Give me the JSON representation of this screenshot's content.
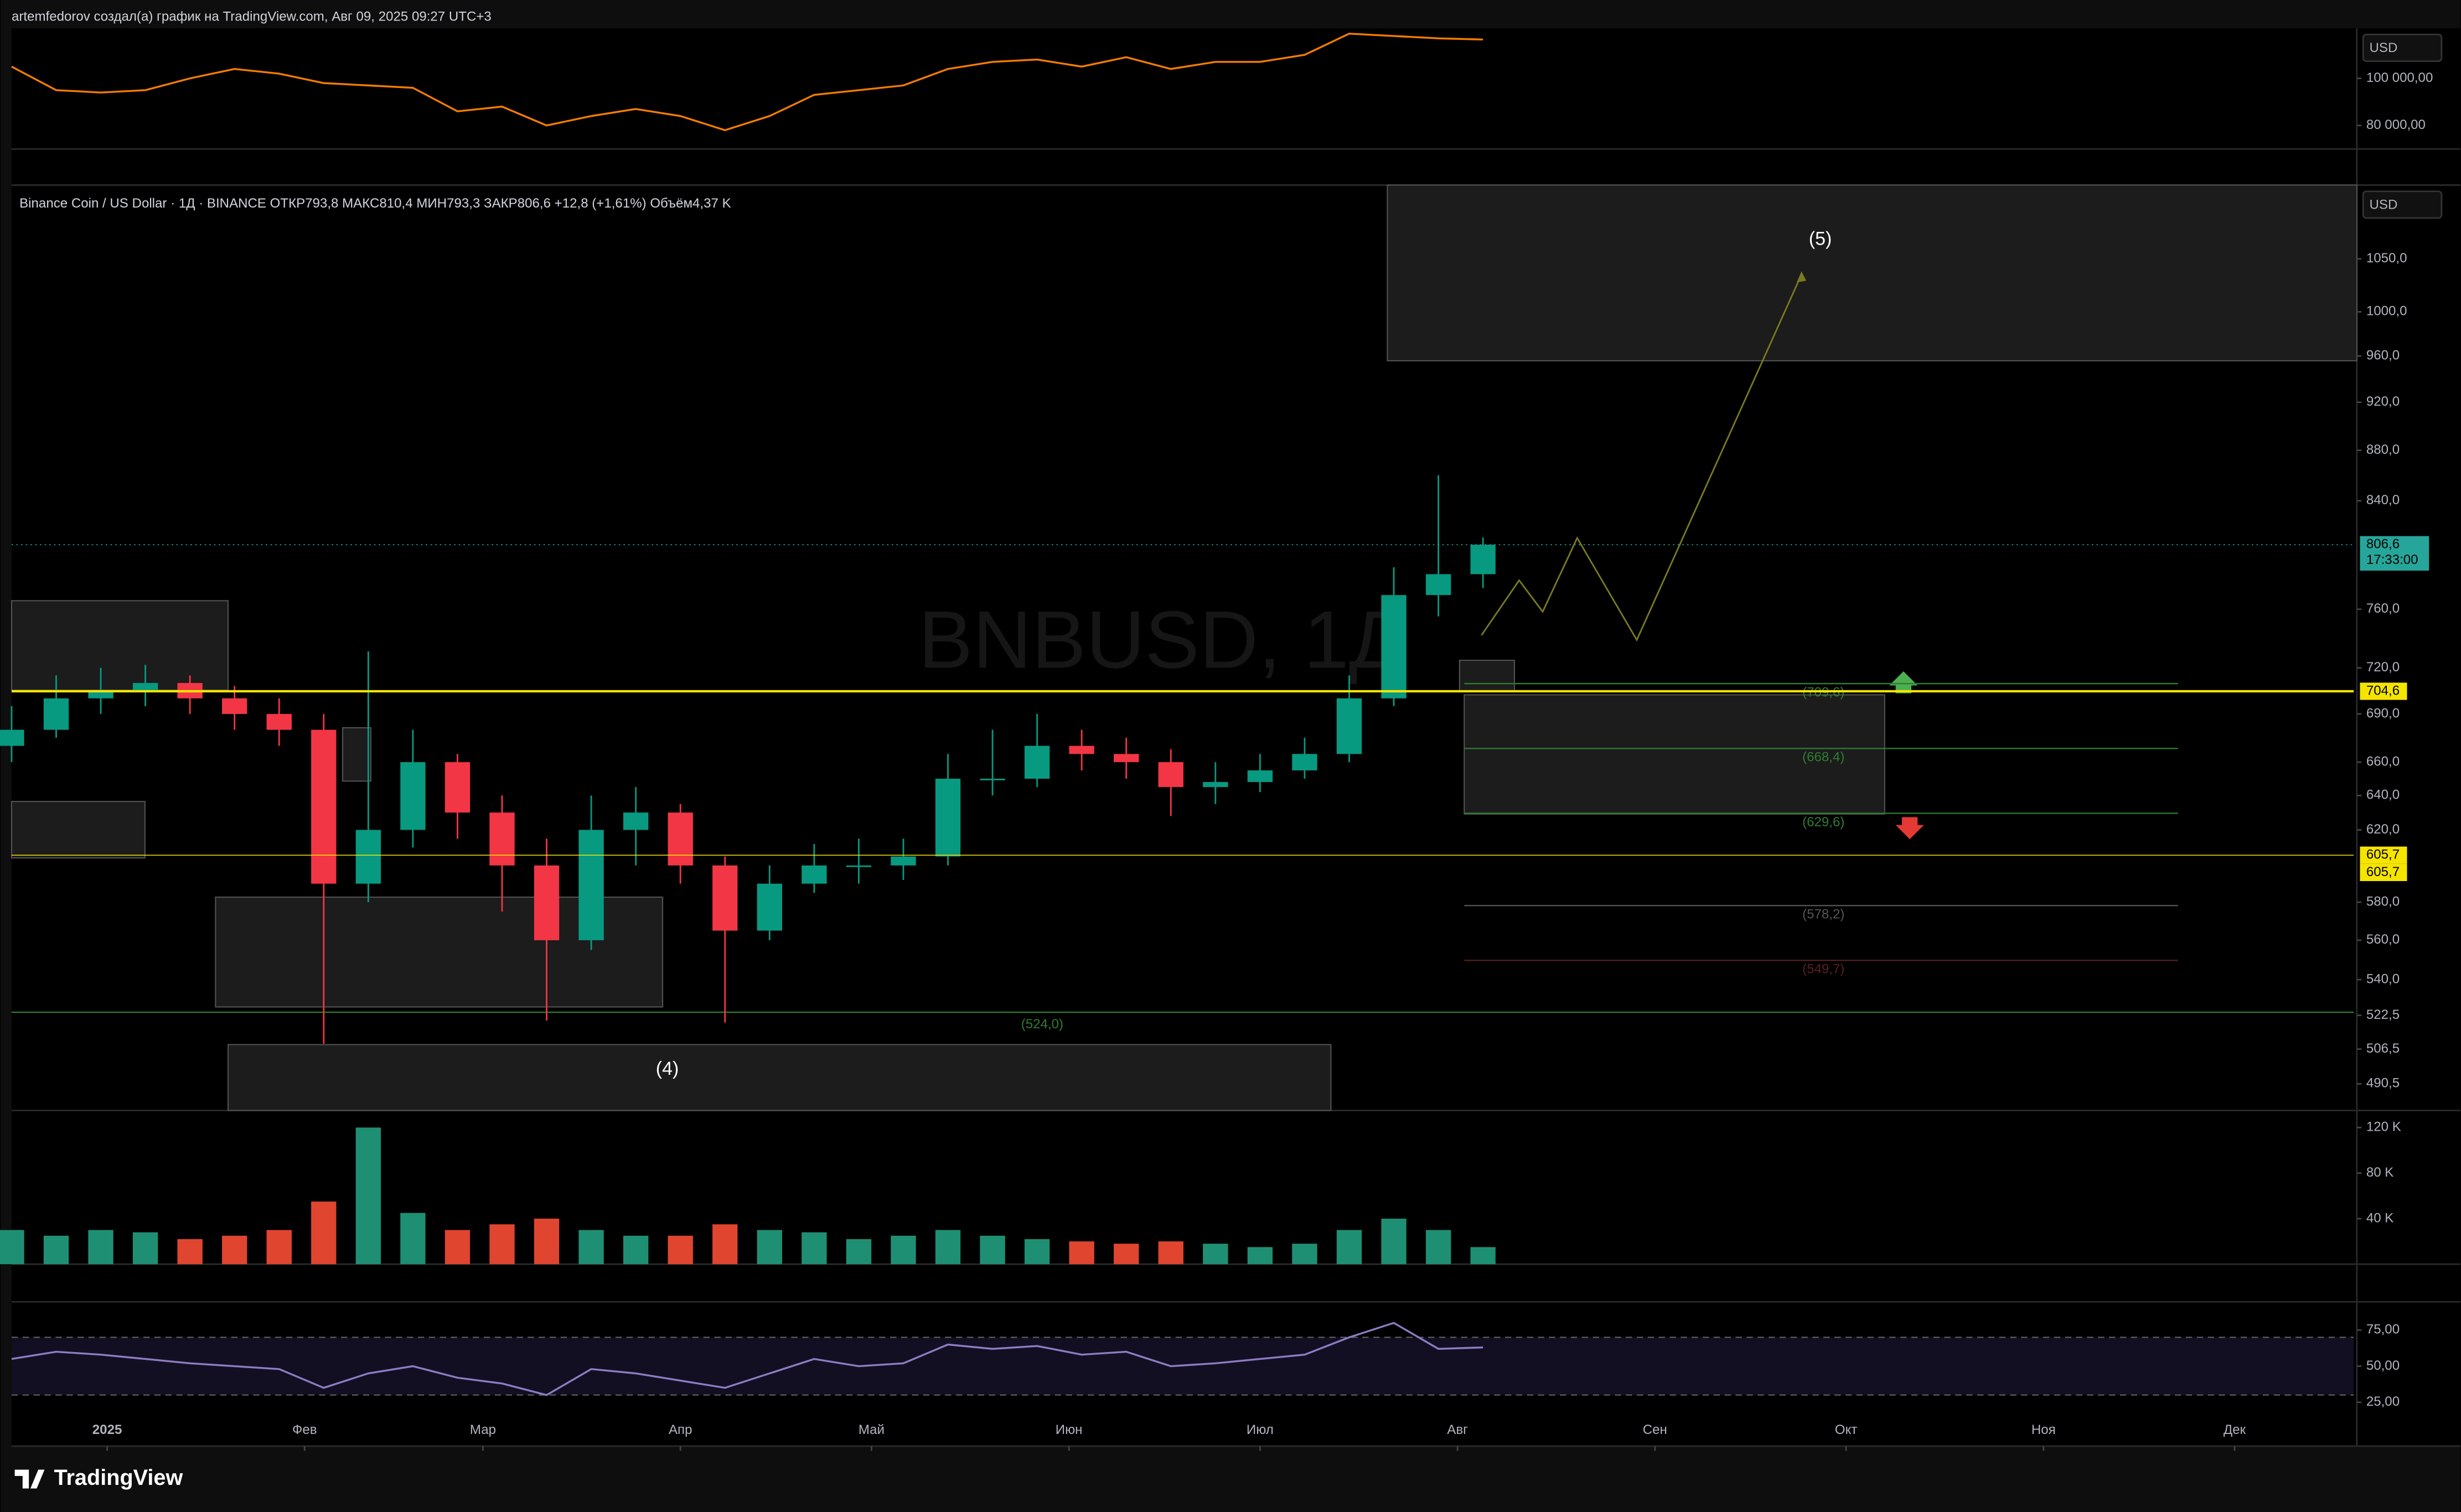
{
  "header": {
    "text": "artemfedorov создал(а) график на TradingView.com, Авг 09, 2025 09:27 UTC+3"
  },
  "footer": {
    "logo": "TradingView"
  },
  "chart_data": [
    {
      "type": "line",
      "color": "#f57c00",
      "currency": "USD",
      "xlim": [
        -15,
        352.7
      ],
      "ylim": [
        70000,
        121300
      ],
      "yticks": [
        {
          "value": 80000,
          "label": "80 000,00"
        },
        {
          "value": 100000,
          "label": "100 000,00"
        }
      ],
      "x": [
        -15,
        -8,
        -1,
        6,
        13,
        20,
        27,
        34,
        41,
        48,
        55,
        62,
        69,
        76,
        83,
        90,
        97,
        104,
        111,
        118,
        125,
        132,
        139,
        146,
        153,
        160,
        167,
        174,
        181,
        188,
        195,
        202,
        209,
        216
      ],
      "values": [
        105000,
        95000,
        94000,
        95000,
        100000,
        104000,
        102000,
        98000,
        97000,
        96000,
        86000,
        88000,
        80000,
        84000,
        87000,
        84000,
        78000,
        84000,
        93000,
        95000,
        97000,
        104000,
        107000,
        108000,
        105000,
        109000,
        104000,
        107000,
        107000,
        110000,
        119000,
        118000,
        117000,
        116500
      ]
    },
    {
      "type": "candlestick",
      "title": "Binance Coin / US Dollar · 1Д · BINANCE  ОТКР793,8  МАКС810,4  МИН793,3  ЗАКР806,6  +12,8 (+1,61%)  Объём4,37 K",
      "watermark": "BNBUSD, 1Д",
      "currency": "USD",
      "log": true,
      "up_color": "#089981",
      "down_color": "#f23645",
      "xlim": [
        -15,
        352.7
      ],
      "ylim": [
        478.6,
        1124
      ],
      "yticks": [
        {
          "value": 1050,
          "label": "1050,0"
        },
        {
          "value": 1000,
          "label": "1000,0"
        },
        {
          "value": 960,
          "label": "960,0"
        },
        {
          "value": 920,
          "label": "920,0"
        },
        {
          "value": 880,
          "label": "880,0"
        },
        {
          "value": 840,
          "label": "840,0"
        },
        {
          "value": 760,
          "label": "760,0"
        },
        {
          "value": 720,
          "label": "720,0"
        },
        {
          "value": 690,
          "label": "690,0"
        },
        {
          "value": 660,
          "label": "660,0"
        },
        {
          "value": 640,
          "label": "640,0"
        },
        {
          "value": 620,
          "label": "620,0"
        },
        {
          "value": 580,
          "label": "580,0"
        },
        {
          "value": 560,
          "label": "560,0"
        },
        {
          "value": 540,
          "label": "540,0"
        },
        {
          "value": 522.5,
          "label": "522,5"
        },
        {
          "value": 506.5,
          "label": "506,5"
        },
        {
          "value": 490.5,
          "label": "490,5"
        }
      ],
      "x": [
        -15,
        -8,
        -1,
        6,
        13,
        20,
        27,
        34,
        41,
        48,
        55,
        62,
        69,
        76,
        83,
        90,
        97,
        104,
        111,
        118,
        125,
        132,
        139,
        146,
        153,
        160,
        167,
        174,
        181,
        188,
        195,
        202,
        209,
        216
      ],
      "open": [
        670,
        680,
        700,
        705,
        710,
        700,
        690,
        680,
        590,
        620,
        660,
        630,
        600,
        560,
        620,
        630,
        600,
        565,
        590,
        600,
        600,
        605,
        650,
        650,
        670,
        665,
        660,
        645,
        648,
        655,
        665,
        700,
        770,
        785
      ],
      "high": [
        695,
        715,
        720,
        722,
        715,
        708,
        700,
        690,
        731,
        680,
        665,
        640,
        615,
        640,
        645,
        635,
        605,
        600,
        612,
        615,
        615,
        665,
        680,
        690,
        680,
        675,
        668,
        660,
        665,
        675,
        715,
        790,
        860,
        812
      ],
      "low": [
        660,
        675,
        690,
        695,
        690,
        680,
        670,
        509,
        580,
        610,
        615,
        575,
        520,
        555,
        600,
        590,
        519,
        560,
        585,
        590,
        592,
        600,
        640,
        645,
        655,
        650,
        628,
        635,
        642,
        650,
        660,
        695,
        755,
        775
      ],
      "close": [
        680,
        700,
        705,
        710,
        700,
        690,
        680,
        590,
        620,
        660,
        630,
        600,
        560,
        620,
        630,
        600,
        565,
        590,
        600,
        600,
        605,
        650,
        650,
        670,
        665,
        660,
        645,
        648,
        655,
        665,
        700,
        770,
        785,
        806.6
      ],
      "axis_tags": [
        {
          "value": 806.6,
          "label": "806,6",
          "time": "17:33:00",
          "color": "#26a69a"
        },
        {
          "value": 704.6,
          "label": "704,6",
          "color": "#f5e400"
        },
        {
          "value": 605.7,
          "label": "605,7",
          "color": "#f5e400"
        }
      ],
      "levels": [
        {
          "value": 709.6,
          "label": "(709,6)",
          "color": "#2e7d32"
        },
        {
          "value": 668.4,
          "label": "(668,4)",
          "color": "#2e7d32"
        },
        {
          "value": 629.6,
          "label": "(629,6)",
          "color": "#2e7d32"
        },
        {
          "value": 578.2,
          "label": "(578,2)",
          "color": "#555555"
        },
        {
          "value": 549.7,
          "label": "(549,7)",
          "color": "#5a1f1f"
        },
        {
          "value": 524.0,
          "label": "(524,0)",
          "color": "#2e7d32"
        }
      ],
      "annotations": [
        "(5)",
        "(4)"
      ]
    },
    {
      "type": "bar",
      "up_color": "#1f8f73",
      "down_color": "#e0452f",
      "xlim": [
        -15,
        352.7
      ],
      "ylim": [
        0,
        135000
      ],
      "yticks": [
        {
          "value": 40000,
          "label": "40 K"
        },
        {
          "value": 80000,
          "label": "80 K"
        },
        {
          "value": 120000,
          "label": "120 K"
        }
      ],
      "x": [
        -15,
        -8,
        -1,
        6,
        13,
        20,
        27,
        34,
        41,
        48,
        55,
        62,
        69,
        76,
        83,
        90,
        97,
        104,
        111,
        118,
        125,
        132,
        139,
        146,
        153,
        160,
        167,
        174,
        181,
        188,
        195,
        202,
        209,
        216
      ],
      "values": [
        30000,
        25000,
        30000,
        28000,
        22000,
        25000,
        30000,
        55000,
        120000,
        45000,
        30000,
        35000,
        40000,
        30000,
        25000,
        25000,
        35000,
        30000,
        28000,
        22000,
        25000,
        30000,
        25000,
        22000,
        20000,
        18000,
        20000,
        18000,
        15000,
        18000,
        30000,
        40000,
        30000,
        15000
      ]
    },
    {
      "type": "line",
      "color": "#8e7cc3",
      "bands": [
        30,
        70
      ],
      "xlim": [
        -15,
        352.7
      ],
      "ylim": [
        -5.4,
        94.6
      ],
      "yticks": [
        {
          "value": 25,
          "label": "25,00"
        },
        {
          "value": 50,
          "label": "50,00"
        },
        {
          "value": 75,
          "label": "75,00"
        }
      ],
      "xticks": [
        {
          "value": 0,
          "label": "2025"
        },
        {
          "value": 31,
          "label": "Фев"
        },
        {
          "value": 59,
          "label": "Мар"
        },
        {
          "value": 90,
          "label": "Апр"
        },
        {
          "value": 120,
          "label": "Май"
        },
        {
          "value": 151,
          "label": "Июн"
        },
        {
          "value": 181,
          "label": "Июл"
        },
        {
          "value": 212,
          "label": "Авг"
        },
        {
          "value": 243,
          "label": "Сен"
        },
        {
          "value": 273,
          "label": "Окт"
        },
        {
          "value": 304,
          "label": "Ноя"
        },
        {
          "value": 334,
          "label": "Дек"
        }
      ],
      "x": [
        -15,
        -8,
        -1,
        6,
        13,
        20,
        27,
        34,
        41,
        48,
        55,
        62,
        69,
        76,
        83,
        90,
        97,
        104,
        111,
        118,
        125,
        132,
        139,
        146,
        153,
        160,
        167,
        174,
        181,
        188,
        195,
        202,
        209,
        216
      ],
      "values": [
        55,
        60,
        58,
        55,
        52,
        50,
        48,
        35,
        45,
        50,
        42,
        38,
        30,
        48,
        45,
        40,
        35,
        45,
        55,
        50,
        52,
        65,
        62,
        64,
        58,
        60,
        50,
        52,
        55,
        58,
        70,
        80,
        62,
        63
      ]
    }
  ]
}
